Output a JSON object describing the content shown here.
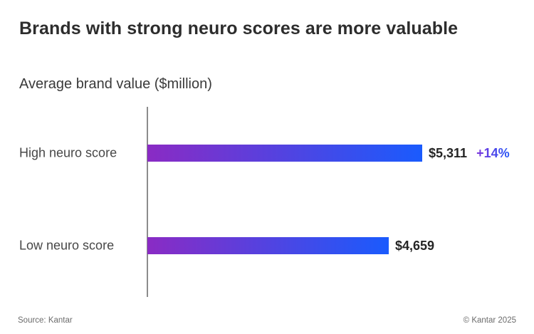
{
  "chart_data": {
    "type": "bar",
    "orientation": "horizontal",
    "title": "Brands with strong neuro scores are more valuable",
    "subtitle": "Average brand value ($million)",
    "categories": [
      "High neuro score",
      "Low neuro score"
    ],
    "values": [
      5311,
      4659
    ],
    "xlim": [
      0,
      5311
    ],
    "grid": false,
    "legend": false,
    "rows": [
      {
        "label": "High neuro score",
        "value": 5311,
        "value_label": "$5,311",
        "delta": "+14%"
      },
      {
        "label": "Low neuro score",
        "value": 4659,
        "value_label": "$4,659",
        "delta": ""
      }
    ]
  },
  "footer": {
    "source": "Source: Kantar",
    "copyright": "© Kantar 2025"
  },
  "colors": {
    "bar_gradient_start": "#8A2BC4",
    "bar_gradient_end": "#1A5BFD",
    "delta_gradient_start": "#7D35DB",
    "delta_gradient_end": "#2155F8",
    "axis_line": "#8C8C8C",
    "title_text": "#2D2D2D",
    "subtitle_text": "#3A3A3A",
    "label_text": "#474747",
    "value_text": "#252525",
    "footer_text": "#6B6B6B",
    "background": "#FFFFFF"
  }
}
